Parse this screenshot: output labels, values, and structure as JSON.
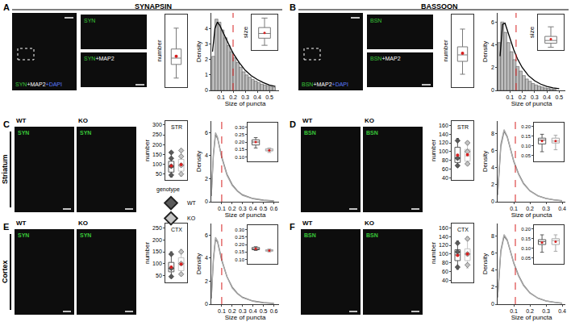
{
  "figure": {
    "panels": [
      {
        "label": "A",
        "heading": "SYNAPSIN",
        "main_image": [
          {
            "text": "SYN",
            "color": "#39c639"
          },
          {
            "text": "+MAP2",
            "color": "#ffffff"
          },
          {
            "text": "+DAPI",
            "color": "#5a7cff"
          }
        ],
        "zoom_images": [
          [
            {
              "text": "SYN",
              "color": "#39c639"
            }
          ],
          [
            {
              "text": "SYN",
              "color": "#39c639"
            },
            {
              "text": "+MAP2",
              "color": "#ffffff"
            }
          ]
        ]
      },
      {
        "label": "B",
        "heading": "BASSOON",
        "main_image": [
          {
            "text": "BSN",
            "color": "#39c639"
          },
          {
            "text": "+MAP2",
            "color": "#ffffff"
          },
          {
            "text": "+DAPI",
            "color": "#5a7cff"
          }
        ],
        "zoom_images": [
          [
            {
              "text": "BSN",
              "color": "#39c639"
            }
          ],
          [
            {
              "text": "BSN",
              "color": "#39c639"
            },
            {
              "text": "+MAP2",
              "color": "#ffffff"
            }
          ]
        ]
      },
      {
        "label": "C",
        "region": "Striatum",
        "stain": {
          "text": "SYN",
          "color": "#39c639"
        },
        "columns": [
          "WT",
          "KO"
        ]
      },
      {
        "label": "D",
        "stain": {
          "text": "BSN",
          "color": "#39c639"
        },
        "columns": [
          "WT",
          "KO"
        ]
      },
      {
        "label": "E",
        "region": "Cortex",
        "stain": {
          "text": "SYN",
          "color": "#39c639"
        },
        "columns": [
          "WT",
          "KO"
        ]
      },
      {
        "label": "F",
        "stain": {
          "text": "BSN",
          "color": "#39c639"
        },
        "columns": [
          "WT",
          "KO"
        ]
      }
    ]
  },
  "chart_data": [
    {
      "panel": "A",
      "type": "box",
      "y_label": "number",
      "tick_labels": false,
      "ylim": [
        10,
        90
      ],
      "series": [
        {
          "color": "#7a7a7a",
          "q1": 35,
          "median": 42,
          "q3": 52,
          "lower": 20,
          "upper": 75,
          "mean": 44
        }
      ]
    },
    {
      "panel": "A",
      "type": "histogram",
      "x_label": "Size of puncta",
      "y_label": "Density",
      "color": "#bdbdbd",
      "bins": [
        0.025,
        0.05,
        0.075,
        0.1,
        0.125,
        0.15,
        0.175,
        0.2,
        0.225,
        0.25,
        0.275,
        0.3,
        0.325,
        0.35,
        0.375,
        0.4,
        0.425,
        0.45,
        0.475,
        0.5,
        0.525,
        0.55
      ],
      "values": [
        2.2,
        4.6,
        4.4,
        3.9,
        3.4,
        2.9,
        2.5,
        2.1,
        1.8,
        1.5,
        1.2,
        1.0,
        0.85,
        0.7,
        0.6,
        0.5,
        0.4,
        0.35,
        0.3,
        0.25,
        0.2
      ],
      "curve": {
        "x": [
          0.03,
          0.05,
          0.07,
          0.09,
          0.12,
          0.15,
          0.2,
          0.25,
          0.3,
          0.35,
          0.4,
          0.45,
          0.5,
          0.55
        ],
        "values": [
          2.5,
          4.0,
          4.4,
          4.2,
          3.7,
          3.2,
          2.4,
          1.8,
          1.3,
          0.95,
          0.7,
          0.5,
          0.35,
          0.25
        ]
      },
      "vline": 0.2,
      "xlim": [
        0.02,
        0.58
      ],
      "xticks": [
        0.1,
        0.2,
        0.3,
        0.4,
        0.5
      ],
      "ylim": [
        0,
        5
      ],
      "yticks": [
        0,
        1,
        2,
        3,
        4
      ]
    },
    {
      "panel": "A",
      "type": "box",
      "y_label": "size",
      "tick_labels": false,
      "ylim": [
        0.05,
        0.35
      ],
      "series": [
        {
          "color": "#7a7a7a",
          "q1": 0.15,
          "median": 0.19,
          "q3": 0.24,
          "lower": 0.09,
          "upper": 0.32,
          "mean": 0.195
        }
      ]
    },
    {
      "panel": "B",
      "type": "box",
      "y_label": "number",
      "tick_labels": false,
      "ylim": [
        10,
        55
      ],
      "series": [
        {
          "color": "#7a7a7a",
          "q1": 26,
          "median": 30,
          "q3": 35,
          "lower": 18,
          "upper": 46,
          "mean": 31
        }
      ]
    },
    {
      "panel": "B",
      "type": "histogram",
      "x_label": "Size of puncta",
      "y_label": "Density",
      "color": "#bdbdbd",
      "bins": [
        0,
        0.025,
        0.05,
        0.075,
        0.1,
        0.125,
        0.15,
        0.175,
        0.2,
        0.225,
        0.25,
        0.275,
        0.3,
        0.325,
        0.35,
        0.375,
        0.4,
        0.425,
        0.45,
        0.475
      ],
      "values": [
        4.2,
        6.0,
        5.1,
        4.2,
        3.4,
        2.7,
        2.1,
        1.7,
        1.3,
        1.0,
        0.8,
        0.6,
        0.48,
        0.38,
        0.3,
        0.22,
        0.17,
        0.13,
        0.1
      ],
      "curve": {
        "x": [
          0.02,
          0.04,
          0.06,
          0.08,
          0.1,
          0.13,
          0.16,
          0.2,
          0.25,
          0.3,
          0.35,
          0.4,
          0.45,
          0.5
        ],
        "values": [
          3.0,
          5.8,
          5.9,
          5.2,
          4.5,
          3.6,
          2.8,
          2.0,
          1.3,
          0.85,
          0.55,
          0.35,
          0.22,
          0.15
        ]
      },
      "vline": 0.15,
      "xlim": [
        0,
        0.55
      ],
      "xticks": [
        0.1,
        0.2,
        0.3,
        0.4,
        0.5
      ],
      "ylim": [
        0,
        6.8
      ],
      "yticks": [
        0,
        2,
        4,
        6
      ]
    },
    {
      "panel": "B",
      "type": "box",
      "y_label": "size",
      "tick_labels": false,
      "ylim": [
        0.04,
        0.3
      ],
      "series": [
        {
          "color": "#7a7a7a",
          "q1": 0.09,
          "median": 0.11,
          "q3": 0.14,
          "lower": 0.06,
          "upper": 0.21,
          "mean": 0.12
        }
      ]
    },
    {
      "panel": "C",
      "type": "box",
      "title": "STR",
      "y_label": "number",
      "legend_title": "genotype",
      "ylim": [
        20,
        320
      ],
      "yticks": [
        50,
        100,
        150,
        200,
        250,
        300
      ],
      "series": [
        {
          "name": "WT",
          "color": "#5a5a5a",
          "marker": "diamond",
          "q1": 60,
          "median": 85,
          "q3": 115,
          "lower": 35,
          "upper": 165,
          "mean": 92,
          "points": [
            45,
            90,
            130,
            160
          ]
        },
        {
          "name": "KO",
          "color": "#c4c4c4",
          "marker": "diamond",
          "q1": 65,
          "median": 95,
          "q3": 125,
          "lower": 40,
          "upper": 175,
          "mean": 98,
          "points": [
            50,
            95,
            140,
            170
          ]
        }
      ]
    },
    {
      "panel": "C",
      "type": "line",
      "x_label": "Size of puncta",
      "y_label": "Density",
      "x": [
        0,
        0.02,
        0.04,
        0.06,
        0.08,
        0.1,
        0.15,
        0.2,
        0.25,
        0.3,
        0.4,
        0.5,
        0.6
      ],
      "series": [
        {
          "color": "#7a7a7a",
          "values": [
            0.5,
            4.0,
            5.8,
            5.5,
            4.7,
            3.9,
            2.4,
            1.5,
            0.95,
            0.6,
            0.28,
            0.14,
            0.07
          ]
        },
        {
          "color": "#a8a8a8",
          "values": [
            0.5,
            4.2,
            6.0,
            5.6,
            4.7,
            3.8,
            2.3,
            1.4,
            0.9,
            0.55,
            0.25,
            0.12,
            0.06
          ]
        }
      ],
      "vline": 0.1,
      "xlim": [
        0,
        0.65
      ],
      "xticks": [
        0.1,
        0.2,
        0.3,
        0.4,
        0.5,
        0.6
      ],
      "ylim": [
        0,
        7
      ],
      "yticks": [
        0,
        2,
        4,
        6
      ]
    },
    {
      "panel": "C",
      "type": "box",
      "ylim": [
        0.07,
        0.33
      ],
      "yticks": [
        {
          "value": 0.1,
          "label": "0.10"
        },
        0.15,
        {
          "value": 0.2,
          "label": "0.20"
        },
        0.25,
        {
          "value": 0.3,
          "label": "0.30"
        }
      ],
      "series": [
        {
          "color": "#5a5a5a",
          "q1": 0.18,
          "median": 0.2,
          "q3": 0.215,
          "lower": 0.16,
          "upper": 0.23,
          "mean": 0.2
        },
        {
          "color": "#a8a8a8",
          "q1": 0.14,
          "median": 0.145,
          "q3": 0.155,
          "lower": 0.13,
          "upper": 0.16,
          "mean": 0.145
        }
      ]
    },
    {
      "panel": "D",
      "type": "box",
      "title": "STR",
      "y_label": "number",
      "ylim": [
        35,
        170
      ],
      "yticks": [
        40,
        60,
        80,
        100,
        120,
        140,
        160
      ],
      "series": [
        {
          "color": "#5a5a5a",
          "marker": "diamond",
          "q1": 75,
          "median": 85,
          "q3": 110,
          "lower": 65,
          "upper": 130,
          "mean": 92,
          "points": [
            68,
            85,
            125
          ]
        },
        {
          "color": "#c4c4c4",
          "marker": "diamond",
          "q1": 78,
          "median": 90,
          "q3": 105,
          "lower": 70,
          "upper": 122,
          "mean": 93,
          "points": [
            72,
            100,
            120
          ]
        }
      ]
    },
    {
      "panel": "D",
      "type": "line",
      "x_label": "Size of puncta",
      "y_label": "Density",
      "x": [
        0,
        0.02,
        0.04,
        0.06,
        0.08,
        0.1,
        0.13,
        0.16,
        0.2,
        0.25,
        0.3,
        0.35,
        0.4
      ],
      "series": [
        {
          "color": "#7a7a7a",
          "values": [
            0.8,
            6.5,
            8.3,
            7.6,
            6.2,
            4.8,
            3.3,
            2.2,
            1.3,
            0.7,
            0.4,
            0.22,
            0.12
          ]
        },
        {
          "color": "#a8a8a8",
          "values": [
            0.8,
            6.8,
            8.5,
            7.7,
            6.2,
            4.7,
            3.2,
            2.1,
            1.25,
            0.68,
            0.38,
            0.2,
            0.11
          ]
        }
      ],
      "vline": 0.11,
      "xlim": [
        0,
        0.42
      ],
      "xticks": [
        0.1,
        0.2,
        0.3,
        0.4
      ],
      "ylim": [
        0,
        9.5
      ],
      "yticks": [
        0,
        2,
        4,
        6,
        8
      ]
    },
    {
      "panel": "D",
      "type": "box",
      "ylim": [
        0.02,
        0.22
      ],
      "yticks": [
        0.05,
        {
          "value": 0.1,
          "label": "0.10"
        },
        0.15,
        {
          "value": 0.2,
          "label": "0.20"
        }
      ],
      "series": [
        {
          "color": "#5a5a5a",
          "q1": 0.11,
          "median": 0.13,
          "q3": 0.14,
          "lower": 0.07,
          "upper": 0.16,
          "mean": 0.125
        },
        {
          "color": "#a8a8a8",
          "q1": 0.115,
          "median": 0.125,
          "q3": 0.14,
          "lower": 0.08,
          "upper": 0.155,
          "mean": 0.125
        }
      ]
    },
    {
      "panel": "E",
      "type": "box",
      "title": "CTX",
      "y_label": "number",
      "ylim": [
        20,
        270
      ],
      "yticks": [
        50,
        100,
        150,
        200,
        250
      ],
      "series": [
        {
          "color": "#5a5a5a",
          "marker": "diamond",
          "q1": 65,
          "median": 80,
          "q3": 105,
          "lower": 40,
          "upper": 150,
          "mean": 85,
          "points": [
            45,
            80,
            140
          ]
        },
        {
          "color": "#c4c4c4",
          "marker": "diamond",
          "q1": 70,
          "median": 95,
          "q3": 125,
          "lower": 50,
          "upper": 160,
          "mean": 98,
          "points": [
            55,
            100,
            150
          ]
        }
      ]
    },
    {
      "panel": "E",
      "type": "line",
      "x_label": "Size of puncta",
      "y_label": "Density",
      "x": [
        0,
        0.02,
        0.04,
        0.06,
        0.08,
        0.1,
        0.15,
        0.2,
        0.25,
        0.3,
        0.4,
        0.5,
        0.6
      ],
      "series": [
        {
          "color": "#7a7a7a",
          "values": [
            0.5,
            3.8,
            5.6,
            5.4,
            4.6,
            3.8,
            2.4,
            1.5,
            0.95,
            0.6,
            0.28,
            0.14,
            0.07
          ]
        },
        {
          "color": "#a8a8a8",
          "values": [
            0.5,
            4.0,
            5.8,
            5.5,
            4.7,
            3.9,
            2.4,
            1.4,
            0.9,
            0.56,
            0.26,
            0.12,
            0.06
          ]
        }
      ],
      "vline": 0.1,
      "xlim": [
        0,
        0.65
      ],
      "xticks": [
        0.1,
        0.2,
        0.3,
        0.4,
        0.5,
        0.6
      ],
      "ylim": [
        0,
        7
      ],
      "yticks": [
        0,
        2,
        4,
        6
      ]
    },
    {
      "panel": "E",
      "type": "box",
      "ylim": [
        0.07,
        0.33
      ],
      "yticks": [
        {
          "value": 0.1,
          "label": "0.10"
        },
        0.15,
        {
          "value": 0.2,
          "label": "0.20"
        },
        0.25,
        {
          "value": 0.3,
          "label": "0.30"
        }
      ],
      "series": [
        {
          "color": "#5a5a5a",
          "q1": 0.165,
          "median": 0.17,
          "q3": 0.18,
          "lower": 0.16,
          "upper": 0.185,
          "mean": 0.172
        },
        {
          "color": "#a8a8a8",
          "q1": 0.155,
          "median": 0.16,
          "q3": 0.165,
          "lower": 0.15,
          "upper": 0.17,
          "mean": 0.16
        }
      ]
    },
    {
      "panel": "F",
      "type": "box",
      "title": "CTX",
      "y_label": "number",
      "ylim": [
        35,
        170
      ],
      "yticks": [
        40,
        60,
        80,
        100,
        120,
        140,
        160
      ],
      "series": [
        {
          "color": "#5a5a5a",
          "marker": "diamond",
          "q1": 85,
          "median": 98,
          "q3": 110,
          "lower": 65,
          "upper": 130,
          "mean": 97,
          "points": [
            70,
            105,
            125
          ]
        },
        {
          "color": "#c4c4c4",
          "marker": "diamond",
          "q1": 85,
          "median": 100,
          "q3": 112,
          "lower": 68,
          "upper": 140,
          "mean": 100,
          "points": [
            75,
            100,
            135
          ]
        }
      ]
    },
    {
      "panel": "F",
      "type": "line",
      "x_label": "Size of puncta",
      "y_label": "Density",
      "x": [
        0,
        0.02,
        0.04,
        0.06,
        0.08,
        0.1,
        0.13,
        0.16,
        0.2,
        0.25,
        0.3,
        0.35,
        0.4
      ],
      "series": [
        {
          "color": "#7a7a7a",
          "values": [
            0.8,
            6.2,
            8.0,
            7.5,
            6.2,
            4.9,
            3.4,
            2.3,
            1.35,
            0.72,
            0.4,
            0.22,
            0.12
          ]
        },
        {
          "color": "#a8a8a8",
          "values": [
            0.8,
            6.4,
            8.2,
            7.6,
            6.2,
            4.8,
            3.3,
            2.2,
            1.3,
            0.7,
            0.38,
            0.21,
            0.11
          ]
        }
      ],
      "vline": 0.11,
      "xlim": [
        0,
        0.42
      ],
      "xticks": [
        0.1,
        0.2,
        0.3,
        0.4
      ],
      "ylim": [
        0,
        9.5
      ],
      "yticks": [
        0,
        2,
        4,
        6,
        8
      ]
    },
    {
      "panel": "F",
      "type": "box",
      "ylim": [
        0.02,
        0.22
      ],
      "yticks": [
        0.05,
        {
          "value": 0.1,
          "label": "0.10"
        },
        0.15,
        {
          "value": 0.2,
          "label": "0.20"
        }
      ],
      "series": [
        {
          "color": "#5a5a5a",
          "q1": 0.12,
          "median": 0.135,
          "q3": 0.145,
          "lower": 0.08,
          "upper": 0.17,
          "mean": 0.13
        },
        {
          "color": "#a8a8a8",
          "q1": 0.12,
          "median": 0.14,
          "q3": 0.15,
          "lower": 0.085,
          "upper": 0.17,
          "mean": 0.135
        }
      ]
    }
  ]
}
